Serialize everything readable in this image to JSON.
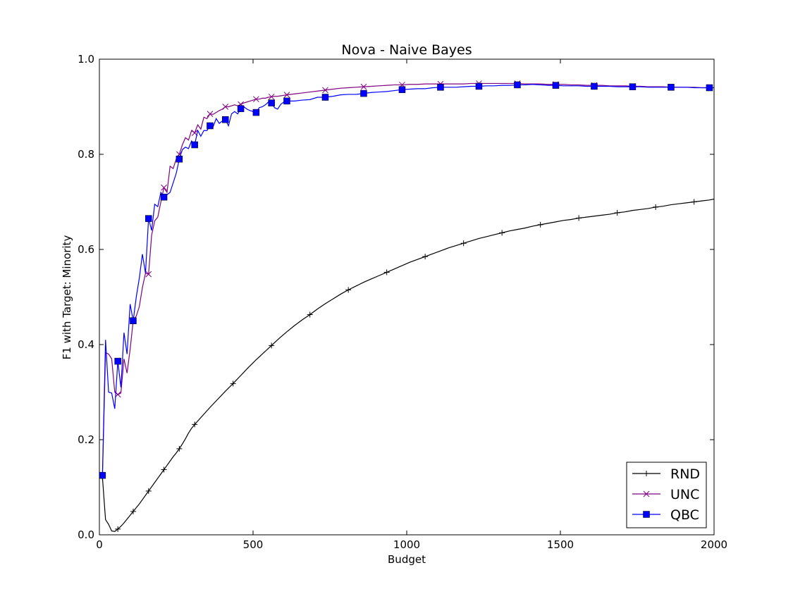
{
  "chart_data": {
    "type": "line",
    "title": "Nova - Naive Bayes",
    "xlabel": "Budget",
    "ylabel": "F1 with Target: Minority",
    "xlim": [
      0,
      2000
    ],
    "ylim": [
      0.0,
      1.0
    ],
    "xticks": [
      "0",
      "500",
      "1000",
      "1500",
      "2000"
    ],
    "yticks": [
      "0.0",
      "0.2",
      "0.4",
      "0.6",
      "0.8",
      "1.0"
    ],
    "grid": false,
    "legend_position": "lower-right",
    "series": [
      {
        "name": "RND",
        "color": "#000000",
        "marker": "plus",
        "x": [
          10,
          20,
          30,
          40,
          50,
          60,
          70,
          80,
          90,
          100,
          110,
          120,
          130,
          140,
          150,
          160,
          170,
          180,
          190,
          200,
          210,
          220,
          230,
          240,
          250,
          260,
          270,
          280,
          290,
          300,
          310,
          335,
          360,
          385,
          410,
          435,
          460,
          485,
          510,
          535,
          560,
          585,
          610,
          635,
          660,
          685,
          710,
          735,
          760,
          785,
          810,
          835,
          860,
          885,
          910,
          935,
          960,
          985,
          1010,
          1035,
          1060,
          1085,
          1110,
          1135,
          1160,
          1185,
          1210,
          1235,
          1260,
          1285,
          1310,
          1335,
          1360,
          1385,
          1410,
          1435,
          1460,
          1485,
          1510,
          1535,
          1560,
          1585,
          1610,
          1635,
          1660,
          1685,
          1710,
          1735,
          1760,
          1785,
          1810,
          1835,
          1860,
          1885,
          1910,
          1935,
          1960,
          1985,
          2000
        ],
        "y": [
          0.12,
          0.032,
          0.022,
          0.008,
          0.007,
          0.012,
          0.018,
          0.025,
          0.033,
          0.041,
          0.049,
          0.057,
          0.065,
          0.074,
          0.083,
          0.092,
          0.101,
          0.11,
          0.119,
          0.128,
          0.137,
          0.146,
          0.155,
          0.164,
          0.172,
          0.181,
          0.191,
          0.202,
          0.214,
          0.224,
          0.232,
          0.25,
          0.268,
          0.285,
          0.302,
          0.318,
          0.335,
          0.352,
          0.368,
          0.383,
          0.398,
          0.413,
          0.427,
          0.44,
          0.452,
          0.463,
          0.475,
          0.486,
          0.496,
          0.506,
          0.515,
          0.523,
          0.531,
          0.538,
          0.545,
          0.552,
          0.559,
          0.566,
          0.573,
          0.579,
          0.585,
          0.591,
          0.597,
          0.603,
          0.608,
          0.613,
          0.618,
          0.623,
          0.627,
          0.631,
          0.635,
          0.639,
          0.642,
          0.645,
          0.649,
          0.652,
          0.655,
          0.658,
          0.661,
          0.663,
          0.666,
          0.668,
          0.67,
          0.672,
          0.674,
          0.677,
          0.679,
          0.682,
          0.684,
          0.686,
          0.689,
          0.691,
          0.694,
          0.696,
          0.698,
          0.7,
          0.702,
          0.704,
          0.706
        ],
        "marker_every": 5
      },
      {
        "name": "UNC",
        "color": "#800080",
        "marker": "x",
        "x": [
          10,
          20,
          30,
          40,
          50,
          60,
          70,
          80,
          90,
          100,
          110,
          120,
          130,
          140,
          150,
          160,
          170,
          180,
          190,
          200,
          210,
          220,
          230,
          240,
          250,
          260,
          270,
          280,
          290,
          300,
          310,
          320,
          330,
          340,
          350,
          360,
          370,
          380,
          390,
          400,
          410,
          420,
          430,
          440,
          450,
          460,
          470,
          480,
          490,
          500,
          510,
          520,
          530,
          540,
          550,
          560,
          570,
          580,
          590,
          600,
          610,
          635,
          660,
          685,
          710,
          735,
          760,
          785,
          810,
          835,
          860,
          885,
          910,
          935,
          960,
          985,
          1010,
          1035,
          1060,
          1085,
          1110,
          1135,
          1160,
          1185,
          1210,
          1235,
          1260,
          1285,
          1310,
          1335,
          1360,
          1385,
          1410,
          1435,
          1460,
          1485,
          1510,
          1535,
          1560,
          1585,
          1610,
          1635,
          1660,
          1685,
          1710,
          1735,
          1760,
          1785,
          1810,
          1835,
          1860,
          1885,
          1910,
          1935,
          1960,
          1985,
          2000
        ],
        "y": [
          0.125,
          0.383,
          0.38,
          0.37,
          0.3,
          0.295,
          0.298,
          0.37,
          0.34,
          0.39,
          0.45,
          0.46,
          0.48,
          0.52,
          0.55,
          0.548,
          0.63,
          0.66,
          0.668,
          0.7,
          0.73,
          0.72,
          0.775,
          0.77,
          0.79,
          0.8,
          0.82,
          0.835,
          0.83,
          0.85,
          0.845,
          0.862,
          0.853,
          0.878,
          0.875,
          0.885,
          0.884,
          0.888,
          0.892,
          0.895,
          0.9,
          0.9,
          0.902,
          0.904,
          0.902,
          0.905,
          0.908,
          0.91,
          0.912,
          0.914,
          0.916,
          0.916,
          0.918,
          0.918,
          0.92,
          0.921,
          0.922,
          0.922,
          0.923,
          0.924,
          0.925,
          0.927,
          0.929,
          0.931,
          0.933,
          0.935,
          0.937,
          0.939,
          0.94,
          0.941,
          0.942,
          0.943,
          0.944,
          0.945,
          0.946,
          0.946,
          0.947,
          0.947,
          0.948,
          0.948,
          0.948,
          0.948,
          0.948,
          0.948,
          0.949,
          0.949,
          0.949,
          0.949,
          0.949,
          0.949,
          0.949,
          0.948,
          0.948,
          0.948,
          0.947,
          0.947,
          0.947,
          0.946,
          0.946,
          0.945,
          0.945,
          0.945,
          0.944,
          0.944,
          0.944,
          0.943,
          0.943,
          0.942,
          0.942,
          0.942,
          0.941,
          0.941,
          0.941,
          0.941,
          0.94,
          0.94,
          0.94
        ],
        "marker_every": 5
      },
      {
        "name": "QBC",
        "color": "#0000ff",
        "marker": "square",
        "x": [
          10,
          20,
          30,
          40,
          50,
          60,
          70,
          80,
          90,
          100,
          110,
          120,
          130,
          140,
          150,
          160,
          170,
          180,
          190,
          200,
          210,
          220,
          230,
          240,
          250,
          260,
          270,
          280,
          290,
          300,
          310,
          320,
          330,
          340,
          350,
          360,
          370,
          380,
          390,
          400,
          410,
          420,
          430,
          440,
          450,
          460,
          470,
          480,
          490,
          500,
          510,
          520,
          530,
          540,
          550,
          560,
          570,
          580,
          590,
          600,
          610,
          635,
          660,
          685,
          710,
          735,
          760,
          785,
          810,
          835,
          860,
          885,
          910,
          935,
          960,
          985,
          1010,
          1035,
          1060,
          1085,
          1110,
          1135,
          1160,
          1185,
          1210,
          1235,
          1260,
          1285,
          1310,
          1335,
          1360,
          1385,
          1410,
          1435,
          1460,
          1485,
          1510,
          1535,
          1560,
          1585,
          1610,
          1635,
          1660,
          1685,
          1710,
          1735,
          1760,
          1785,
          1810,
          1835,
          1860,
          1885,
          1910,
          1935,
          1960,
          1985,
          2000
        ],
        "y": [
          0.125,
          0.41,
          0.3,
          0.298,
          0.265,
          0.365,
          0.31,
          0.425,
          0.38,
          0.485,
          0.45,
          0.5,
          0.54,
          0.59,
          0.55,
          0.665,
          0.64,
          0.695,
          0.69,
          0.72,
          0.71,
          0.715,
          0.72,
          0.74,
          0.76,
          0.79,
          0.81,
          0.815,
          0.812,
          0.828,
          0.82,
          0.85,
          0.838,
          0.85,
          0.85,
          0.86,
          0.858,
          0.875,
          0.865,
          0.87,
          0.873,
          0.86,
          0.885,
          0.89,
          0.885,
          0.896,
          0.9,
          0.895,
          0.892,
          0.89,
          0.888,
          0.898,
          0.9,
          0.904,
          0.91,
          0.908,
          0.898,
          0.895,
          0.905,
          0.91,
          0.912,
          0.912,
          0.914,
          0.915,
          0.92,
          0.92,
          0.922,
          0.925,
          0.926,
          0.926,
          0.928,
          0.93,
          0.931,
          0.932,
          0.934,
          0.936,
          0.937,
          0.938,
          0.938,
          0.94,
          0.941,
          0.941,
          0.941,
          0.942,
          0.943,
          0.943,
          0.944,
          0.944,
          0.945,
          0.945,
          0.946,
          0.946,
          0.947,
          0.946,
          0.945,
          0.945,
          0.944,
          0.944,
          0.944,
          0.943,
          0.943,
          0.943,
          0.943,
          0.942,
          0.942,
          0.942,
          0.942,
          0.941,
          0.941,
          0.941,
          0.941,
          0.941,
          0.941,
          0.94,
          0.94,
          0.94,
          0.94
        ],
        "marker_every": 5
      }
    ]
  }
}
